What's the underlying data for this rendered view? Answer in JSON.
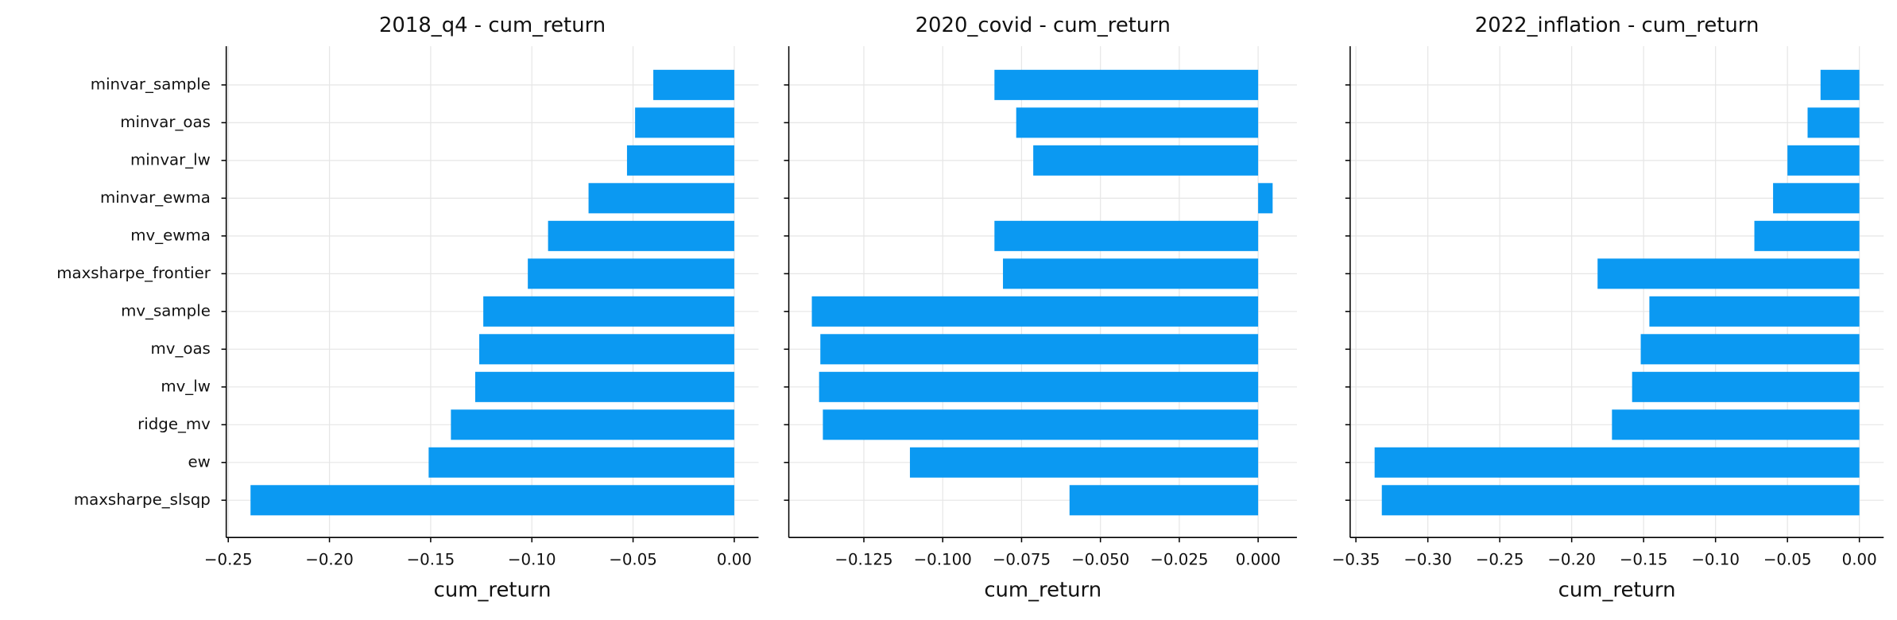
{
  "chart_data": [
    {
      "type": "barh",
      "title": "2018_q4 - cum_return",
      "xlabel": "cum_return",
      "color": "#0b99f2",
      "grid": true,
      "categories": [
        "minvar_sample",
        "minvar_oas",
        "minvar_lw",
        "minvar_ewma",
        "mv_ewma",
        "maxsharpe_frontier",
        "mv_sample",
        "mv_oas",
        "mv_lw",
        "ridge_mv",
        "ew",
        "maxsharpe_slsqp"
      ],
      "values": [
        -0.04,
        -0.049,
        -0.053,
        -0.072,
        -0.092,
        -0.102,
        -0.124,
        -0.126,
        -0.128,
        -0.14,
        -0.151,
        -0.239
      ],
      "xlim": [
        -0.251,
        0.012
      ],
      "xticks": [
        {
          "value": -0.25,
          "label": "−0.25"
        },
        {
          "value": -0.2,
          "label": "−0.20"
        },
        {
          "value": -0.15,
          "label": "−0.15"
        },
        {
          "value": -0.1,
          "label": "−0.10"
        },
        {
          "value": -0.05,
          "label": "−0.05"
        },
        {
          "value": 0,
          "label": "0.00"
        }
      ]
    },
    {
      "type": "barh",
      "title": "2020_covid - cum_return",
      "xlabel": "cum_return",
      "color": "#0b99f2",
      "grid": true,
      "values": [
        -0.0836,
        -0.0767,
        -0.0713,
        0.0046,
        -0.0836,
        -0.0809,
        -0.1415,
        -0.1388,
        -0.1392,
        -0.138,
        -0.1104,
        -0.0598
      ],
      "xlim": [
        -0.1488,
        0.0123
      ],
      "xticks": [
        {
          "value": -0.125,
          "label": "−0.125"
        },
        {
          "value": -0.1,
          "label": "−0.100"
        },
        {
          "value": -0.075,
          "label": "−0.075"
        },
        {
          "value": -0.05,
          "label": "−0.050"
        },
        {
          "value": -0.025,
          "label": "−0.025"
        },
        {
          "value": 0,
          "label": "0.000"
        }
      ]
    },
    {
      "type": "barh",
      "title": "2022_inflation - cum_return",
      "xlabel": "cum_return",
      "color": "#0b99f2",
      "grid": true,
      "values": [
        -0.027,
        -0.036,
        -0.05,
        -0.06,
        -0.073,
        -0.182,
        -0.146,
        -0.152,
        -0.158,
        -0.172,
        -0.337,
        -0.332
      ],
      "xlim": [
        -0.354,
        0.0169
      ],
      "xticks": [
        {
          "value": -0.35,
          "label": "−0.35"
        },
        {
          "value": -0.3,
          "label": "−0.30"
        },
        {
          "value": -0.25,
          "label": "−0.25"
        },
        {
          "value": -0.2,
          "label": "−0.20"
        },
        {
          "value": -0.15,
          "label": "−0.15"
        },
        {
          "value": -0.1,
          "label": "−0.10"
        },
        {
          "value": -0.05,
          "label": "−0.05"
        },
        {
          "value": 0,
          "label": "0.00"
        }
      ]
    }
  ]
}
